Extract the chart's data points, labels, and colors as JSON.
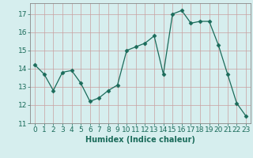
{
  "x": [
    0,
    1,
    2,
    3,
    4,
    5,
    6,
    7,
    8,
    9,
    10,
    11,
    12,
    13,
    14,
    15,
    16,
    17,
    18,
    19,
    20,
    21,
    22,
    23
  ],
  "y": [
    14.2,
    13.7,
    12.8,
    13.8,
    13.9,
    13.2,
    12.2,
    12.4,
    12.8,
    13.1,
    15.0,
    15.2,
    15.4,
    15.8,
    13.7,
    17.0,
    17.2,
    16.5,
    16.6,
    16.6,
    15.3,
    13.7,
    12.1,
    11.4
  ],
  "line_color": "#1a6b5a",
  "marker": "D",
  "marker_size": 2.5,
  "bg_color": "#d6eeee",
  "grid_color_major": "#c8d8d8",
  "grid_color_minor": "#ddeaea",
  "xlabel": "Humidex (Indice chaleur)",
  "xlim": [
    -0.5,
    23.5
  ],
  "ylim": [
    11,
    17.6
  ],
  "yticks": [
    11,
    12,
    13,
    14,
    15,
    16,
    17
  ],
  "xticks": [
    0,
    1,
    2,
    3,
    4,
    5,
    6,
    7,
    8,
    9,
    10,
    11,
    12,
    13,
    14,
    15,
    16,
    17,
    18,
    19,
    20,
    21,
    22,
    23
  ],
  "xlabel_fontsize": 7,
  "tick_fontsize": 6.5
}
